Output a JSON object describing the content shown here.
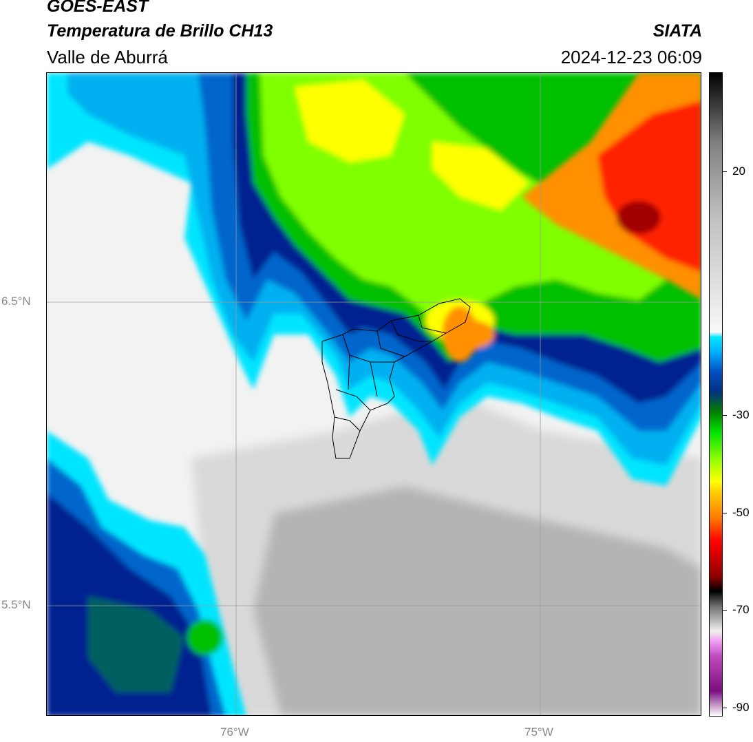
{
  "header": {
    "satellite": "GOES-EAST",
    "product": "Temperatura de Brillo CH13",
    "region": "Valle de Aburrá",
    "brand": "SIATA",
    "timestamp": "2024-12-23 06:09"
  },
  "axes": {
    "lat_labels": [
      "6.5°N",
      "5.5°N"
    ],
    "lon_labels": [
      "76°W",
      "75°W"
    ]
  },
  "colorbar": {
    "labels": [
      "20",
      "-30",
      "-50",
      "-70",
      "-90"
    ],
    "stops": [
      {
        "color": "#ffffff",
        "value": -95
      },
      {
        "color": "#7a0f80",
        "value": -90
      },
      {
        "color": "#c04cc0",
        "value": -83
      },
      {
        "color": "#f0a0f0",
        "value": -80
      },
      {
        "color": "#f0f0f0",
        "value": -78
      },
      {
        "color": "#707070",
        "value": -73
      },
      {
        "color": "#000000",
        "value": -70
      },
      {
        "color": "#900000",
        "value": -67
      },
      {
        "color": "#ff0000",
        "value": -60
      },
      {
        "color": "#ff8000",
        "value": -55
      },
      {
        "color": "#ffd000",
        "value": -50
      },
      {
        "color": "#ffff00",
        "value": -48
      },
      {
        "color": "#a0ff00",
        "value": -44
      },
      {
        "color": "#00e000",
        "value": -38
      },
      {
        "color": "#008000",
        "value": -34
      },
      {
        "color": "#003080",
        "value": -30
      },
      {
        "color": "#0050c0",
        "value": -26
      },
      {
        "color": "#00b0ff",
        "value": -22
      },
      {
        "color": "#00e8ff",
        "value": -19
      },
      {
        "color": "#f8f8f8",
        "value": -18
      },
      {
        "color": "#c0c0c0",
        "value": 5
      },
      {
        "color": "#808080",
        "value": 20
      },
      {
        "color": "#000000",
        "value": 34
      }
    ]
  },
  "palette": {
    "white": "#f2f2f2",
    "lightgray": "#d9d9d9",
    "gray": "#b4b4b4",
    "cyan": "#00e5ff",
    "lightblue": "#00b0f0",
    "blue": "#0066cc",
    "navy": "#002090",
    "darkgreen": "#006060",
    "green": "#00c000",
    "lime": "#80ff00",
    "yellow": "#ffff00",
    "orange": "#ff9000",
    "red": "#ff2000",
    "darkred": "#a00000",
    "boundary": "#000000",
    "grid": "#9a9a9a"
  }
}
